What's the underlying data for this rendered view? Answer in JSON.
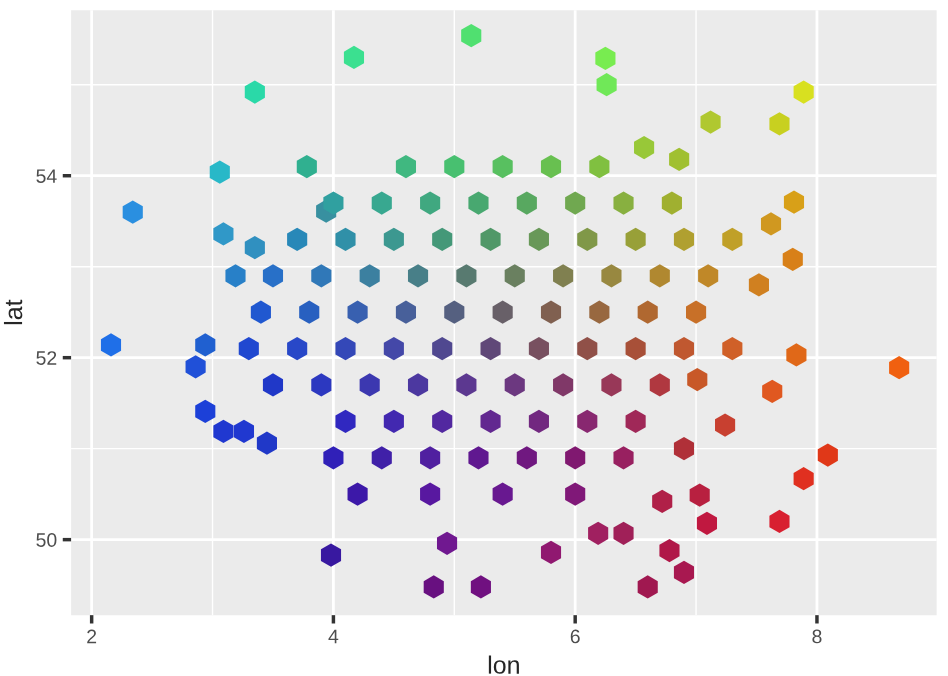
{
  "chart_data": {
    "type": "scatter",
    "xlabel": "lon",
    "ylabel": "lat",
    "xlim": [
      1.83,
      8.99
    ],
    "ylim": [
      49.17,
      55.82
    ],
    "xticks": [
      2,
      4,
      6,
      8
    ],
    "yticks": [
      50,
      52,
      54
    ],
    "grid": true,
    "legend": false,
    "series": [
      {
        "x": [
          2.16,
          2.34,
          3.35,
          3.06,
          4.17,
          5.14,
          6.26,
          6.25,
          7.89,
          7.69,
          8.68,
          8.09,
          7.89,
          7.69,
          7.09,
          6.78,
          6.6,
          6.9,
          5.8,
          6.19,
          5.22,
          4.83,
          3.98,
          4.94,
          2.94,
          3.09,
          3.26,
          3.45,
          2.86,
          2.94,
          3.19,
          3.35,
          3.09,
          3.78,
          3.94,
          7.52,
          7.62,
          7.81,
          7.8,
          7.83,
          7.63,
          7.01,
          7.24,
          6.9,
          6.72,
          6.4,
          7.03,
          7.12,
          6.57,
          6.86,
          4.6,
          5.0,
          5.4,
          5.8,
          6.2,
          4.0,
          4.4,
          4.8,
          5.2,
          5.6,
          6.0,
          6.4,
          6.8,
          3.7,
          4.1,
          4.5,
          4.9,
          5.3,
          5.7,
          6.1,
          6.5,
          6.9,
          7.3,
          3.5,
          3.9,
          4.3,
          4.7,
          5.1,
          5.5,
          5.9,
          6.3,
          6.7,
          7.1,
          3.4,
          3.8,
          4.2,
          4.6,
          5.0,
          5.4,
          5.8,
          6.2,
          6.6,
          7.0,
          3.3,
          3.7,
          4.1,
          4.5,
          4.9,
          5.3,
          5.7,
          6.1,
          6.5,
          6.9,
          7.3,
          3.5,
          3.9,
          4.3,
          4.7,
          5.1,
          5.5,
          5.9,
          6.3,
          6.7,
          4.1,
          4.5,
          4.9,
          5.3,
          5.7,
          6.1,
          6.5,
          4.0,
          4.4,
          4.8,
          5.2,
          5.6,
          6.0,
          6.4,
          4.2,
          4.8,
          5.4,
          6.0
        ],
        "values": [
          52.14,
          53.6,
          54.92,
          54.04,
          55.3,
          55.54,
          55.0,
          55.29,
          54.92,
          54.57,
          51.89,
          50.93,
          50.67,
          50.2,
          50.18,
          49.88,
          49.48,
          49.64,
          49.86,
          50.07,
          49.48,
          49.48,
          49.83,
          49.96,
          51.41,
          51.19,
          51.19,
          51.06,
          51.9,
          52.14,
          52.9,
          53.21,
          53.36,
          54.1,
          53.61,
          52.8,
          53.47,
          53.71,
          53.08,
          52.03,
          51.63,
          51.76,
          51.26,
          51.0,
          50.42,
          50.07,
          50.49,
          54.59,
          54.31,
          54.18,
          54.1,
          54.1,
          54.1,
          54.1,
          54.1,
          53.7,
          53.7,
          53.7,
          53.7,
          53.7,
          53.7,
          53.7,
          53.7,
          53.3,
          53.3,
          53.3,
          53.3,
          53.3,
          53.3,
          53.3,
          53.3,
          53.3,
          53.3,
          52.9,
          52.9,
          52.9,
          52.9,
          52.9,
          52.9,
          52.9,
          52.9,
          52.9,
          52.9,
          52.5,
          52.5,
          52.5,
          52.5,
          52.5,
          52.5,
          52.5,
          52.5,
          52.5,
          52.5,
          52.1,
          52.1,
          52.1,
          52.1,
          52.1,
          52.1,
          52.1,
          52.1,
          52.1,
          52.1,
          52.1,
          51.7,
          51.7,
          51.7,
          51.7,
          51.7,
          51.7,
          51.7,
          51.7,
          51.7,
          51.3,
          51.3,
          51.3,
          51.3,
          51.3,
          51.3,
          51.3,
          50.9,
          50.9,
          50.9,
          50.9,
          50.9,
          50.9,
          50.9,
          50.5,
          50.5,
          50.5,
          50.5
        ],
        "colors": [
          "#1f6fe8",
          "#2a8fe0",
          "#2ad9a8",
          "#28b8c8",
          "#3be090",
          "#50e070",
          "#70e858",
          "#78ec50",
          "#d8e020",
          "#c8d020",
          "#f06010",
          "#e03818",
          "#e03020",
          "#d82030",
          "#c01840",
          "#b01848",
          "#a01850",
          "#a81850",
          "#901870",
          "#a02060",
          "#701080",
          "#681080",
          "#3818a0",
          "#701890",
          "#1c40d8",
          "#2038d0",
          "#2038d0",
          "#2038c8",
          "#2050d8",
          "#2060d0",
          "#2880c8",
          "#3090c0",
          "#3098c8",
          "#30b090",
          "#3890a0",
          "#d08020",
          "#d09820",
          "#d8a018",
          "#d88018",
          "#e06818",
          "#e05820",
          "#c85828",
          "#c84030",
          "#b03038",
          "#b02048",
          "#a02058",
          "#b82040",
          "#b0c830",
          "#98c838",
          "#a0c030",
          "#40b880",
          "#48c070",
          "#58c060",
          "#68c050",
          "#80c040",
          "#30a0a0",
          "#38a890",
          "#40a880",
          "#48a870",
          "#58a860",
          "#70a850",
          "#88b040",
          "#a0b030",
          "#2888b8",
          "#3090a8",
          "#3c9890",
          "#449878",
          "#509868",
          "#689858",
          "#809848",
          "#98a038",
          "#b0a030",
          "#c0a028",
          "#2870c8",
          "#3078b8",
          "#3c80a0",
          "#487f88",
          "#587a70",
          "#6a8060",
          "#808050",
          "#988840",
          "#b08830",
          "#c08828",
          "#2058d0",
          "#2860c0",
          "#3860b0",
          "#48609a",
          "#556080",
          "#686068",
          "#806050",
          "#986840",
          "#b06830",
          "#c87028",
          "#2048d0",
          "#2848c8",
          "#3448b8",
          "#4448a8",
          "#504890",
          "#604878",
          "#785060",
          "#905048",
          "#a85038",
          "#c05830",
          "#d06028",
          "#2038c8",
          "#2c38c0",
          "#3c38b0",
          "#4c38a0",
          "#5c3890",
          "#6c3880",
          "#803868",
          "#983858",
          "#b03840",
          "#3028c0",
          "#4228b0",
          "#5228a0",
          "#622890",
          "#722880",
          "#882870",
          "#a02858",
          "#3020b8",
          "#4020a8",
          "#5020a0",
          "#601890",
          "#701880",
          "#801870",
          "#982060",
          "#3c18a8",
          "#5818a0",
          "#681890",
          "#801878"
        ]
      }
    ]
  }
}
